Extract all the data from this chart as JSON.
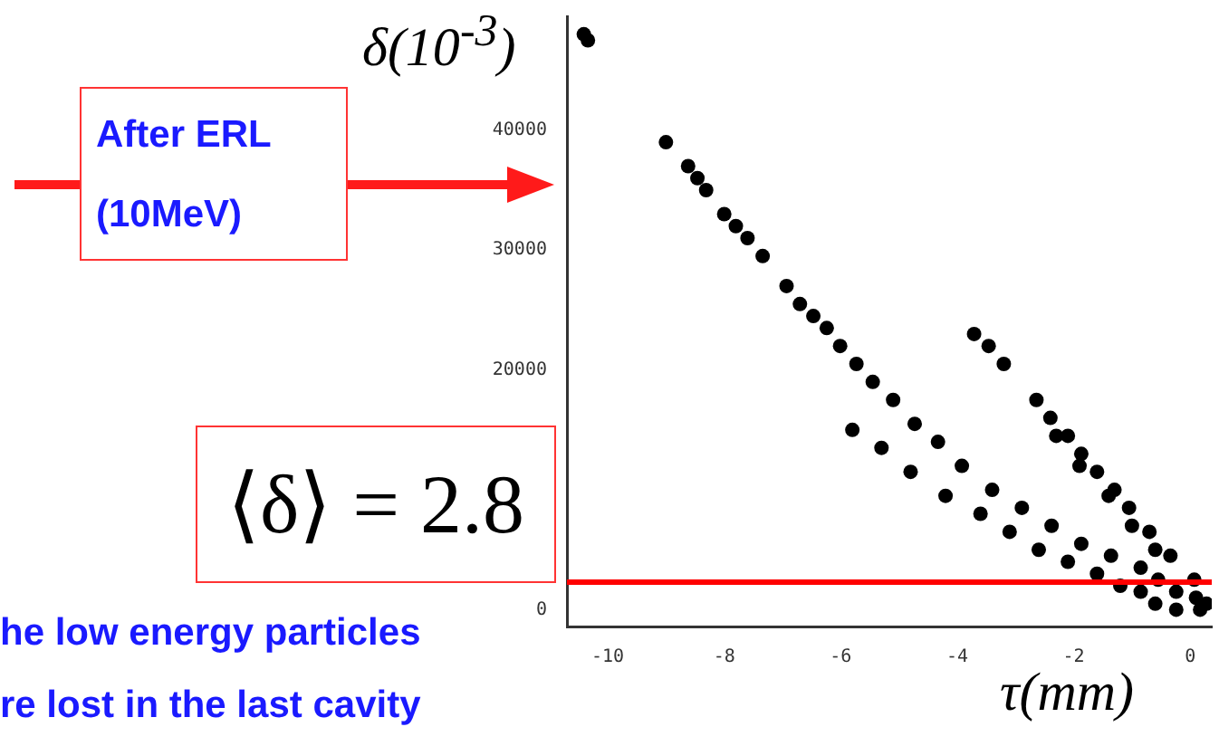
{
  "chart_data": {
    "type": "scatter",
    "xlabel": "τ(mm)",
    "ylabel": "δ(10$^{-3}$)",
    "annotations": [
      "After ERL\n(10MeV)",
      "⟨δ⟩ = 2.8",
      "he low energy particles",
      "re lost in the last cavity"
    ],
    "xlim": [
      -10.7,
      0.37
    ],
    "ylim": [
      -1400,
      49500
    ],
    "xticks": [
      -10,
      -8,
      -6,
      -4,
      -2,
      0
    ],
    "yticks": [
      0,
      20000,
      30000,
      40000
    ],
    "grid": false,
    "legend": false,
    "marker": "circle",
    "ref_lines": [
      {
        "axis": "y",
        "value": 2300,
        "color": "#ff0000"
      }
    ],
    "series": [
      {
        "color": "#000000",
        "x": [
          -10.41,
          -10.34,
          -9.0,
          -8.62,
          -8.46,
          -8.31,
          -8.0,
          -7.8,
          -7.6,
          -7.34,
          -6.93,
          -6.7,
          -6.47,
          -6.24,
          -6.01,
          -5.73,
          -5.45,
          -5.1,
          -4.73,
          -4.33,
          -3.92,
          -3.4,
          -2.89,
          -2.38,
          -1.87,
          -1.36,
          -0.85,
          -0.55,
          -0.24,
          0.17,
          -0.24,
          -0.6,
          -0.85,
          -1.2,
          -1.6,
          -2.1,
          -2.6,
          -3.1,
          -3.6,
          -4.2,
          -4.8,
          -5.3,
          -5.8
        ],
        "values": [
          48000,
          47500,
          39000,
          37000,
          36000,
          35000,
          33000,
          32000,
          31000,
          29500,
          27000,
          25500,
          24500,
          23500,
          22000,
          20500,
          19000,
          17500,
          15500,
          14000,
          12000,
          10000,
          8500,
          7000,
          5500,
          4500,
          3500,
          2500,
          1500,
          0,
          0,
          500,
          1500,
          2000,
          3000,
          4000,
          5000,
          6500,
          8000,
          9500,
          11500,
          13500,
          15000
        ]
      },
      {
        "color": "#000000",
        "x": [
          -3.71,
          -3.46,
          -3.2,
          -2.64,
          -2.4,
          -2.1,
          -1.87,
          -1.6,
          -1.3,
          -1.05,
          -0.7,
          -0.34,
          0.07,
          0.28,
          0.1,
          -0.6,
          -1.0,
          -1.4,
          -1.9,
          -2.3
        ],
        "values": [
          23000,
          22000,
          20500,
          17500,
          16000,
          14500,
          13000,
          11500,
          10000,
          8500,
          6500,
          4500,
          2500,
          500,
          1000,
          5000,
          7000,
          9500,
          12000,
          14500
        ]
      }
    ]
  }
}
